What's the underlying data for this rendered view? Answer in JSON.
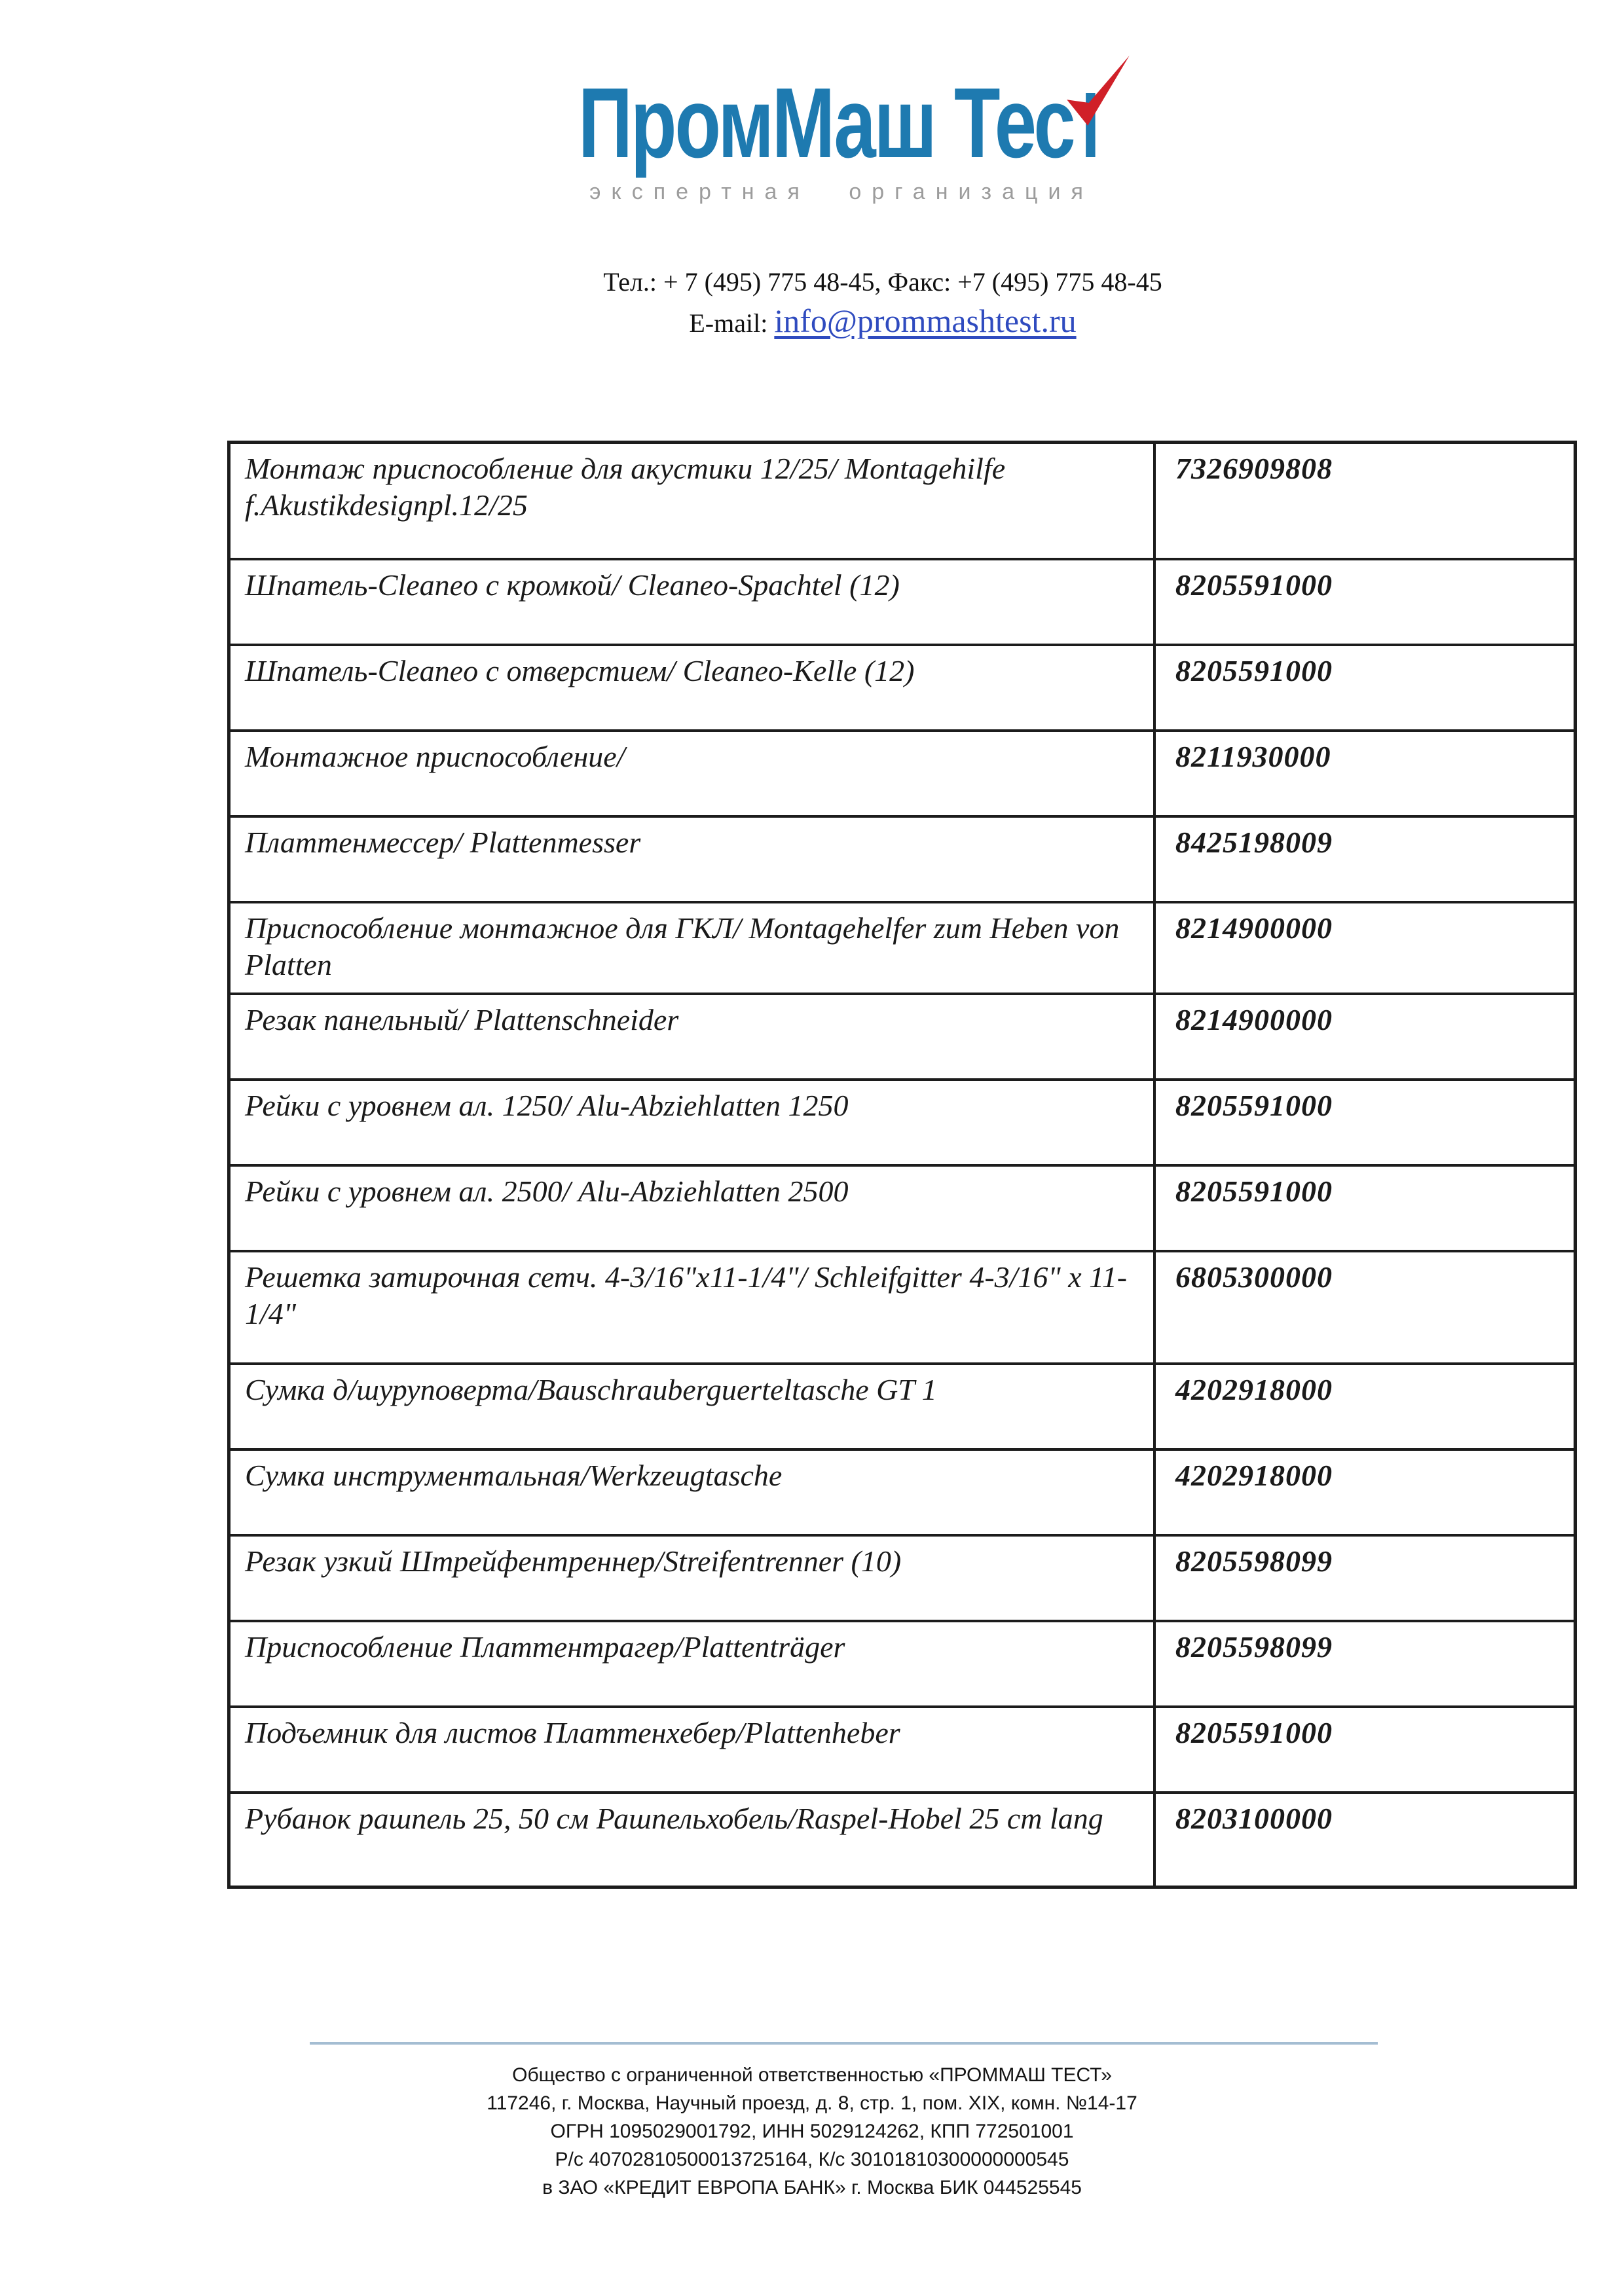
{
  "logo": {
    "text_main": "ПромМаш Тес",
    "text_last_letter_stem": "т",
    "tagline": "экспертная организация",
    "colors": {
      "blue": "#1e7ab0",
      "red": "#d02028",
      "tagline_gray": "#9c9c9c"
    }
  },
  "contact": {
    "phone_fax_line": "Тел.: + 7 (495) 775 48-45, Факс: +7 (495) 775 48-45",
    "email_label": "E-mail:",
    "email_address": "info@prommashtest.ru",
    "email_link_color": "#2f4bbf"
  },
  "table": {
    "rows": [
      {
        "name": "Монтаж приспособление для акустики 12/25/ Montagehilfe f.Akustikdesignpl.12/25",
        "code": "7326909808"
      },
      {
        "name": "Шпатель-Cleaneo с кромкой/ Cleaneo-Spachtel (12)",
        "code": "8205591000"
      },
      {
        "name": "Шпатель-Cleaneo с отверстием/ Cleaneo-Kelle (12)",
        "code": "8205591000"
      },
      {
        "name": "Монтажное приспособление/",
        "code": "8211930000"
      },
      {
        "name": "Платтенмессер/ Plattenmesser",
        "code": "8425198009"
      },
      {
        "name": "Приспособление монтажное для ГКЛ/ Montagehelfer zum Heben von Platten",
        "code": "8214900000"
      },
      {
        "name": "Резак панельный/ Plattenschneider",
        "code": "8214900000"
      },
      {
        "name": "Рейки с уровнем ал. 1250/ Alu-Abziehlatten 1250",
        "code": "8205591000"
      },
      {
        "name": "Рейки с уровнем ал. 2500/ Alu-Abziehlatten 2500",
        "code": "8205591000"
      },
      {
        "name": "Решетка затирочная сетч. 4-3/16\"x11-1/4\"/ Schleifgitter 4-3/16\" x 11-1/4\"",
        "code": "6805300000"
      },
      {
        "name": "Сумка д/шуруповерта/Bauschrauberguerteltasche GT 1",
        "code": "4202918000"
      },
      {
        "name": "Сумка инструментальная/Werkzeugtasche",
        "code": "4202918000"
      },
      {
        "name": "Резак узкий Штрейфентреннер/Streifentrenner (10)",
        "code": "8205598099"
      },
      {
        "name": "Приспособление Платтентрагер/Plattenträger",
        "code": "8205598099"
      },
      {
        "name": "Подъемник для листов Платтенхебер/Plattenheber",
        "code": "8205591000"
      },
      {
        "name": "Рубанок рашпель 25, 50 см Рашпельхобель/Raspel-Hobel 25 cm lang",
        "code": "8203100000"
      }
    ]
  },
  "footer": {
    "divider_color": "#a4bdd2",
    "lines": [
      "Общество с ограниченной ответственностью «ПРОММАШ ТЕСТ»",
      "117246, г. Москва, Научный проезд, д. 8, стр. 1, пом. XIX, комн. №14-17",
      "ОГРН 1095029001792, ИНН 5029124262, КПП 772501001",
      "Р/с 40702810500013725164, К/с 30101810300000000545",
      "в ЗАО «КРЕДИТ ЕВРОПА БАНК» г. Москва БИК 044525545"
    ]
  }
}
